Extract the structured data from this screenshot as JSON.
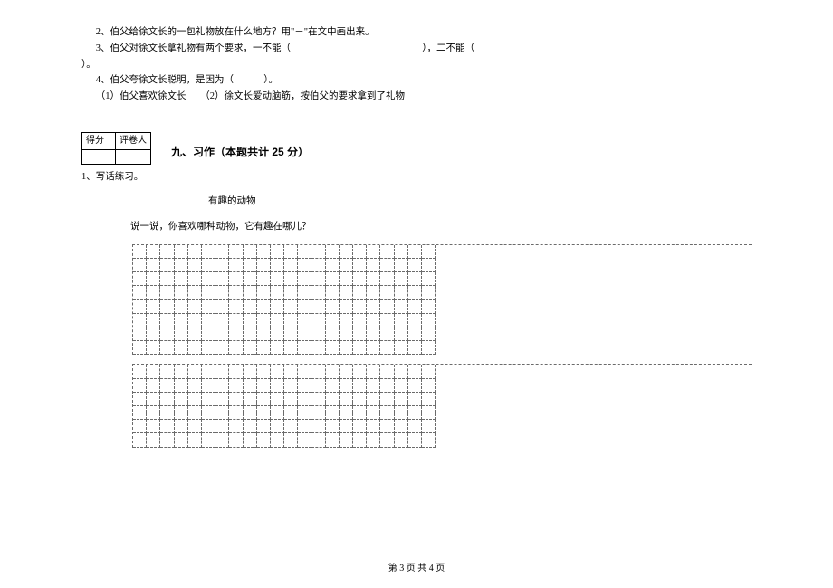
{
  "questions": {
    "q2": "2、伯父给徐文长的一包礼物放在什么地方？用\"－\"在文中画出来。",
    "q3_a": "3、伯父对徐文长拿礼物有两个要求，一不能（",
    "q3_b": "），二不能（",
    "q3_c": "）。",
    "q4_a": "4、伯父夸徐文长聪明，是因为（",
    "q4_b": "）。",
    "q4_opts": "（1）伯父喜欢徐文长　　（2）徐文长爱动脑筋，按伯父的要求拿到了礼物"
  },
  "score_table": {
    "h1": "得分",
    "h2": "评卷人"
  },
  "section_title": "九、习作（本题共计 25 分）",
  "essay": {
    "num": "1、写话练习。",
    "title": "有趣的动物",
    "prompt": "说一说，你喜欢哪种动物，它有趣在哪儿？"
  },
  "grid": {
    "cols": 22,
    "rows_block1": 8,
    "rows_block2": 6,
    "border_color": "#6b6b6b"
  },
  "footer": {
    "prefix": "第 ",
    "cur": "3",
    "mid": " 页 共 ",
    "total": "4",
    "suffix": " 页"
  }
}
